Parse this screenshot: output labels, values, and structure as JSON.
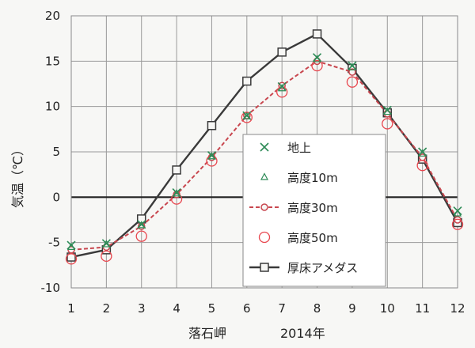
{
  "chart_data": {
    "type": "line",
    "ylabel": "気温（℃）",
    "xlabel_station": "落石岬",
    "xlabel_year": "2014年",
    "ylim": [
      -10,
      20
    ],
    "yticks": [
      20,
      15,
      10,
      5,
      0,
      -5,
      -10
    ],
    "x": [
      1,
      2,
      3,
      4,
      5,
      6,
      7,
      8,
      9,
      10,
      11,
      12
    ],
    "grid": true,
    "legend_position": "center-right",
    "series": [
      {
        "name": "地上",
        "marker": "x",
        "color": "#2e8b57",
        "values": [
          -5.3,
          -5.1,
          -3.0,
          0.5,
          4.6,
          9.0,
          12.2,
          15.4,
          14.5,
          9.6,
          5.0,
          -1.5
        ]
      },
      {
        "name": "高度10m",
        "marker": "triangle",
        "color": "#2e8b57",
        "values": [
          -5.5,
          -5.2,
          -3.1,
          0.4,
          4.5,
          8.9,
          12.0,
          15.2,
          14.3,
          9.4,
          4.8,
          -1.8
        ]
      },
      {
        "name": "高度30m",
        "marker": "small-circle",
        "line": "dashed",
        "color": "#c8474f",
        "values": [
          -5.8,
          -5.5,
          -3.2,
          0.3,
          4.4,
          9.0,
          12.3,
          15.0,
          13.8,
          9.2,
          4.4,
          -2.5
        ]
      },
      {
        "name": "高度50m",
        "marker": "open-circle",
        "color": "#e8474f",
        "values": [
          -6.8,
          -6.5,
          -4.3,
          -0.2,
          4.0,
          8.8,
          11.6,
          14.5,
          12.7,
          8.1,
          3.5,
          -3.0
        ]
      },
      {
        "name": "厚床アメダス",
        "marker": "open-square",
        "line": "solid",
        "color": "#3a3a3a",
        "values": [
          -6.6,
          -5.8,
          -2.4,
          3.0,
          7.9,
          12.8,
          16.0,
          18.0,
          14.2,
          9.3,
          4.2,
          -2.8
        ]
      }
    ]
  }
}
